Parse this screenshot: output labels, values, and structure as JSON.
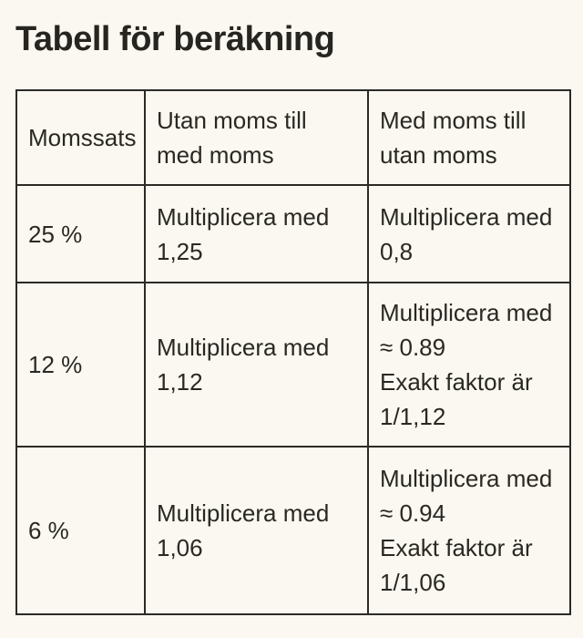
{
  "page": {
    "title": "Tabell för beräkning"
  },
  "colors": {
    "background": "#faf8f0",
    "text": "#2a2823",
    "border": "#2b2a26"
  },
  "table": {
    "headers": [
      {
        "label": "Momssats"
      },
      {
        "label": "Utan moms till\nmed moms"
      },
      {
        "label": "Med moms till\nutan moms"
      }
    ],
    "rows": [
      {
        "cells": [
          "25 %",
          "Multiplicera med\n1,25",
          "Multiplicera med\n0,8"
        ]
      },
      {
        "cells": [
          "12 %",
          "Multiplicera med\n1,12",
          "Multiplicera med\n≈ 0.89\nExakt faktor är\n1/1,12"
        ]
      },
      {
        "cells": [
          "6 %",
          "Multiplicera med\n1,06",
          "Multiplicera med\n≈ 0.94\nExakt faktor är\n1/1,06"
        ]
      }
    ]
  }
}
